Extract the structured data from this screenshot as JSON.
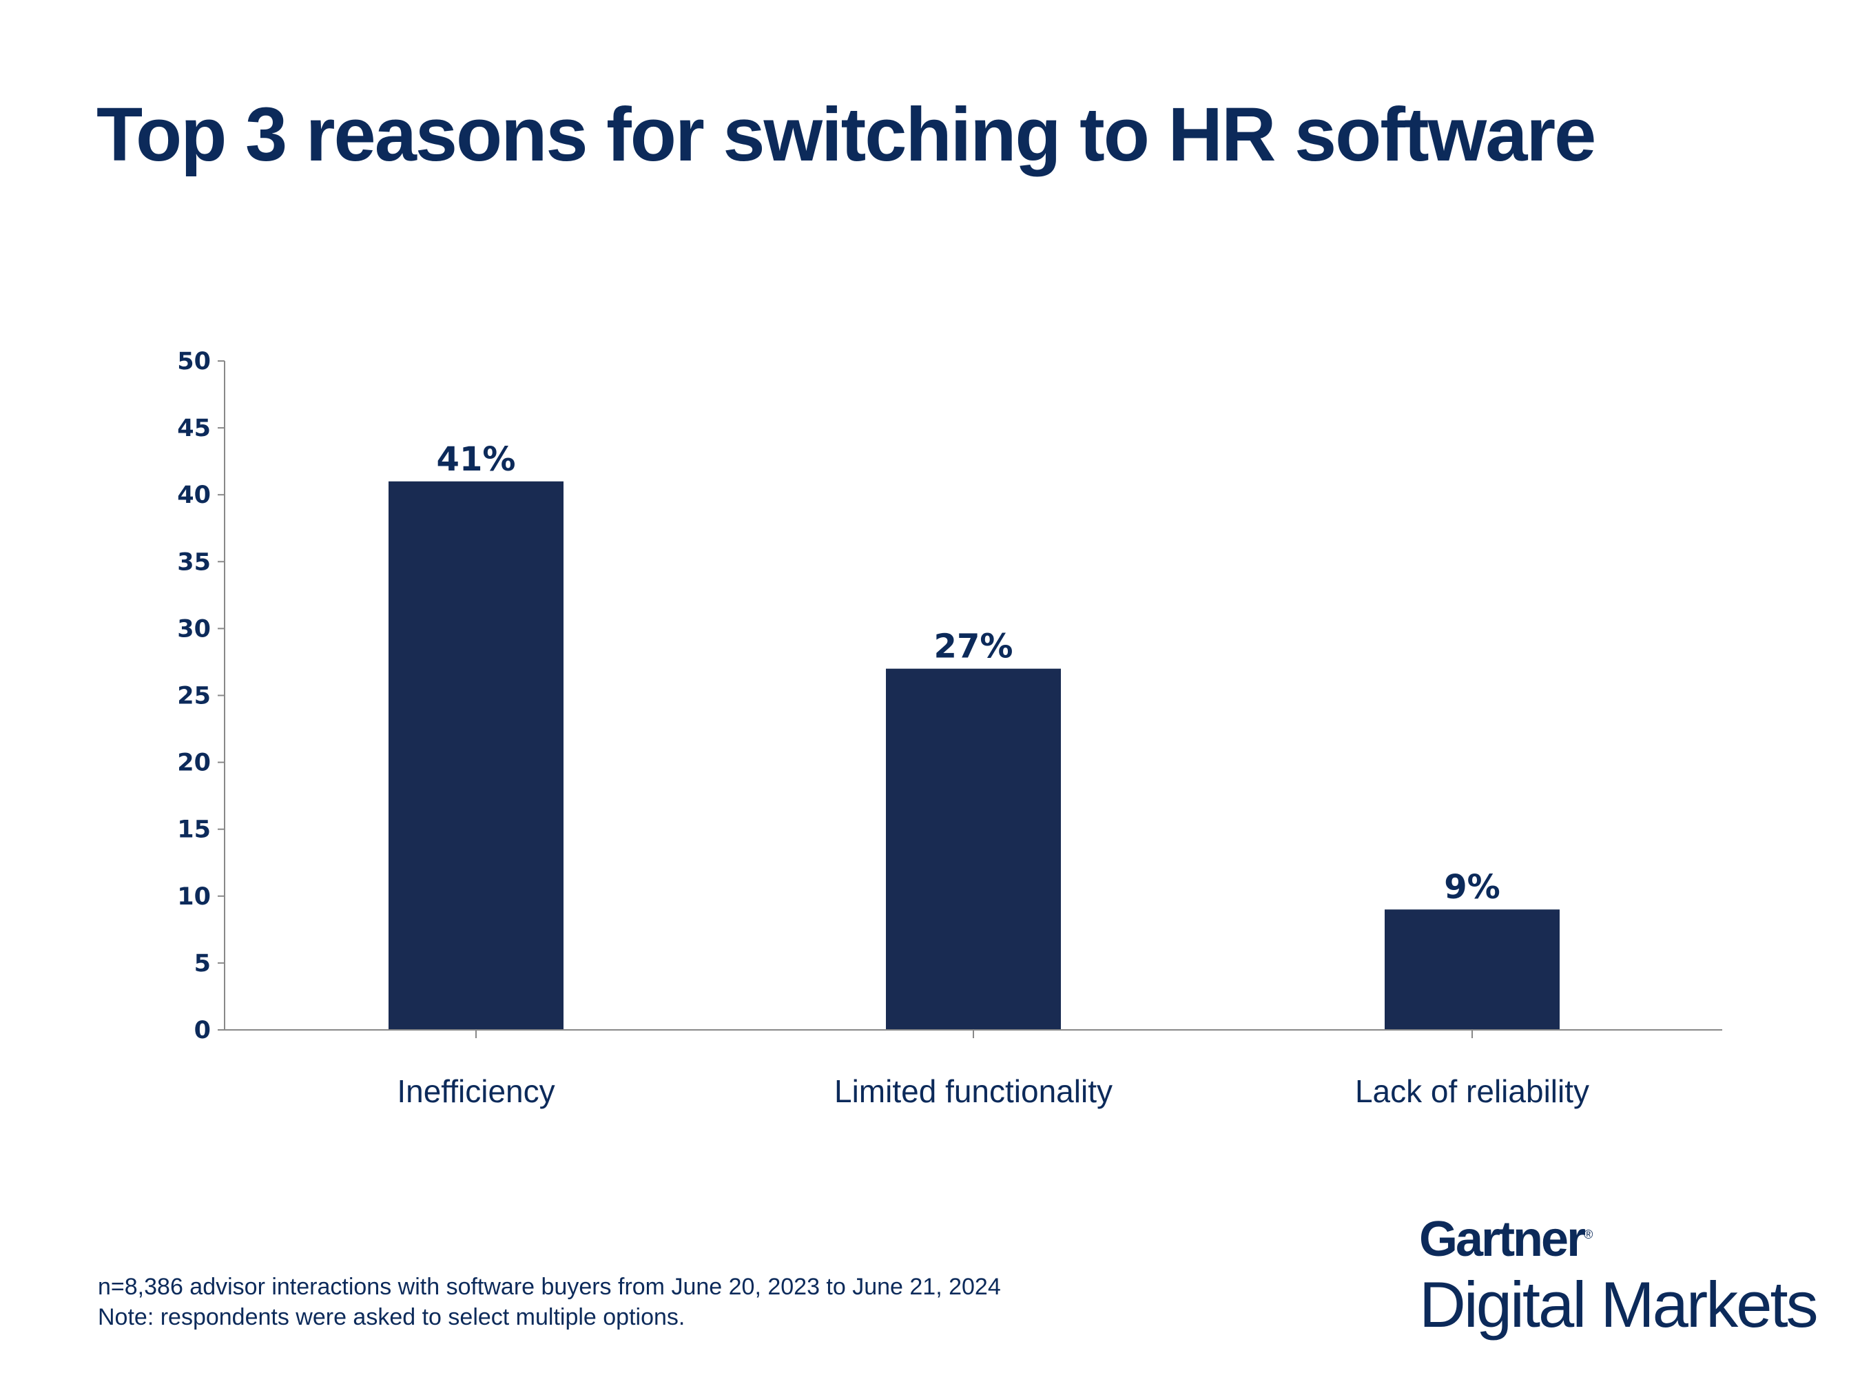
{
  "chart_data": {
    "type": "bar",
    "title": "Top 3 reasons for switching to HR software",
    "categories": [
      "Inefficiency",
      "Limited functionality",
      "Lack of reliability"
    ],
    "values": [
      41,
      27,
      9
    ],
    "data_labels": [
      "41%",
      "27%",
      "9%"
    ],
    "xlabel": "",
    "ylabel": "",
    "ylim": [
      0,
      50
    ],
    "yticks": [
      0,
      5,
      10,
      15,
      20,
      25,
      30,
      35,
      40,
      45,
      50
    ],
    "grid": false,
    "bar_color": "#192b52",
    "text_color": "#0c2a5a"
  },
  "footnote": {
    "line1": "n=8,386 advisor interactions with software buyers from June 20, 2023 to June 21, 2024",
    "line2": "Note: respondents were asked to select multiple options."
  },
  "logo": {
    "brand": "Gartner",
    "reg": "®",
    "product": "Digital Markets"
  }
}
